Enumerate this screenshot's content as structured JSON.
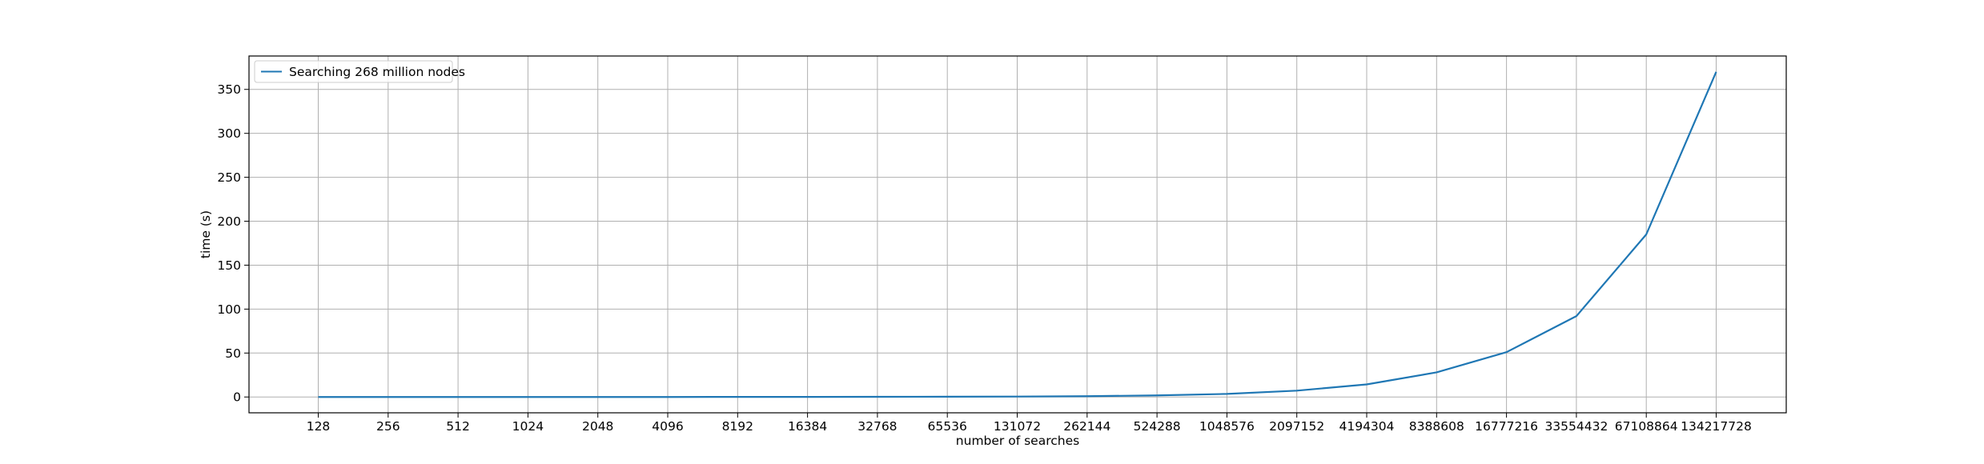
{
  "chart_data": {
    "type": "line",
    "xlabel": "number of searches",
    "ylabel": "time (s)",
    "categories": [
      "128",
      "256",
      "512",
      "1024",
      "2048",
      "4096",
      "8192",
      "16384",
      "32768",
      "65536",
      "131072",
      "262144",
      "524288",
      "1048576",
      "2097152",
      "4194304",
      "8388608",
      "16777216",
      "33554432",
      "67108864",
      "134217728"
    ],
    "yticks": [
      "0",
      "50",
      "100",
      "150",
      "200",
      "250",
      "300",
      "350"
    ],
    "ylim": [
      -18,
      388
    ],
    "grid": true,
    "legend_position": "top-left",
    "series": [
      {
        "name": "Searching 268 million nodes",
        "color": "#1f77b4",
        "values": [
          0.0,
          0.0,
          0.0,
          0.0,
          0.0,
          0.0,
          0.1,
          0.1,
          0.2,
          0.3,
          0.5,
          0.9,
          1.8,
          3.5,
          7.2,
          14.3,
          28.0,
          51.0,
          92.0,
          185.0,
          370.0
        ]
      }
    ]
  }
}
